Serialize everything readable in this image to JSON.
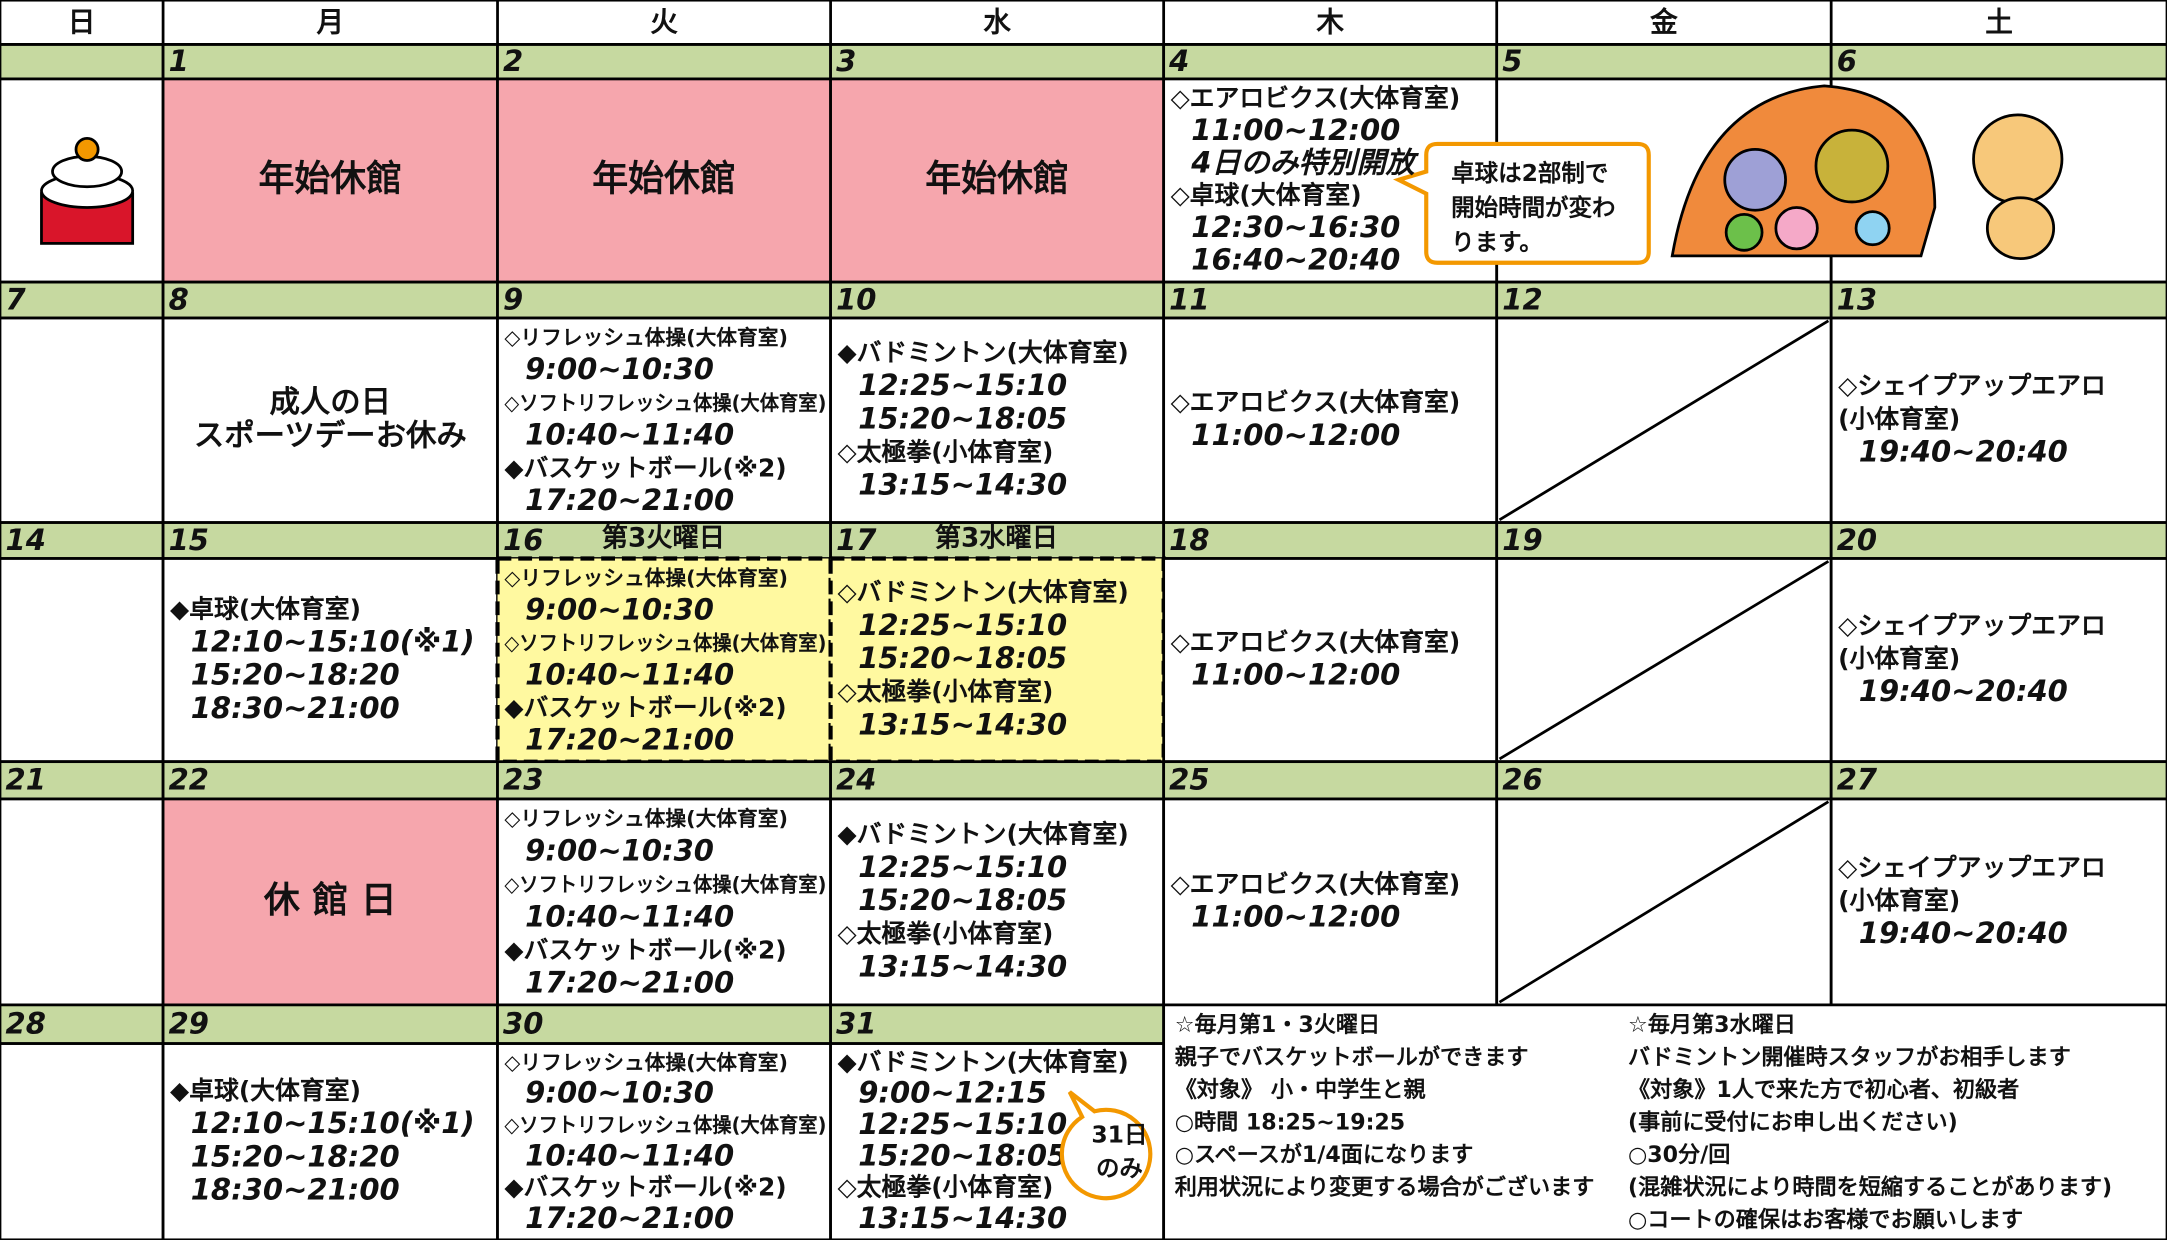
{
  "calendar": {
    "days": [
      "日",
      "月",
      "火",
      "水",
      "木",
      "金",
      "土"
    ],
    "weeks": [
      {
        "dates": [
          null,
          "1",
          "2",
          "3",
          "4",
          "5",
          "6"
        ],
        "cells": [
          {
            "style": "icon"
          },
          {
            "style": "closed",
            "label": "年始休館"
          },
          {
            "style": "closed",
            "label": "年始休館"
          },
          {
            "style": "closed",
            "label": "年始休館"
          },
          {
            "lines": [
              "◇エアロビクス(大体育室)",
              "11:00~12:00",
              {
                "text": "4日のみ特別開放",
                "color": "#e60012"
              },
              "◇卓球(大体育室)",
              "12:30~16:30",
              "16:40~20:40"
            ]
          },
          {
            "style": "picture"
          },
          {
            "style": "picture"
          }
        ]
      },
      {
        "dates": [
          "7",
          "8",
          "9",
          "10",
          "11",
          "12",
          "13"
        ],
        "cells": [
          {},
          {
            "lines": [
              "成人の日",
              "スポーツデーお休み"
            ],
            "style": "center"
          },
          {
            "lines": [
              "◇リフレッシュ体操(大体育室)",
              "9:00~10:30",
              "◇ソフトリフレッシュ体操(大体育室)",
              "10:40~11:40",
              "◆バスケットボール(※2)",
              "17:20~21:00"
            ]
          },
          {
            "lines": [
              "◆バドミントン(大体育室)",
              "12:25~15:10",
              "15:20~18:05",
              "◇太極拳(小体育室)",
              "13:15~14:30"
            ]
          },
          {
            "lines": [
              "◇エアロビクス(大体育室)",
              "11:00~12:00"
            ]
          },
          {
            "style": "slash"
          },
          {
            "lines": [
              "◇シェイプアップエアロ",
              "(小体育室)",
              "19:40~20:40"
            ]
          }
        ]
      },
      {
        "dates": [
          "14",
          "15",
          "16",
          "17",
          "18",
          "19",
          "20"
        ],
        "date_notes": [
          null,
          null,
          "第3火曜日",
          "第3水曜日",
          null,
          null,
          null
        ],
        "cells": [
          {},
          {
            "lines": [
              "◆卓球(大体育室)",
              "12:10~15:10(※1)",
              "15:20~18:20",
              "18:30~21:00"
            ]
          },
          {
            "style": "highlight",
            "lines": [
              "◇リフレッシュ体操(大体育室)",
              "9:00~10:30",
              "◇ソフトリフレッシュ体操(大体育室)",
              "10:40~11:40",
              "◆バスケットボール(※2)",
              "17:20~21:00"
            ]
          },
          {
            "style": "highlight",
            "lines": [
              "◇バドミントン(大体育室)",
              "12:25~15:10",
              "15:20~18:05",
              "◇太極拳(小体育室)",
              "13:15~14:30"
            ]
          },
          {
            "lines": [
              "◇エアロビクス(大体育室)",
              "11:00~12:00"
            ]
          },
          {
            "style": "slash"
          },
          {
            "lines": [
              "◇シェイプアップエアロ",
              "(小体育室)",
              "19:40~20:40"
            ]
          }
        ]
      },
      {
        "dates": [
          "21",
          "22",
          "23",
          "24",
          "25",
          "26",
          "27"
        ],
        "cells": [
          {},
          {
            "style": "closed",
            "label": "休 館 日"
          },
          {
            "lines": [
              "◇リフレッシュ体操(大体育室)",
              "9:00~10:30",
              "◇ソフトリフレッシュ体操(大体育室)",
              "10:40~11:40",
              "◆バスケットボール(※2)",
              "17:20~21:00"
            ]
          },
          {
            "lines": [
              "◆バドミントン(大体育室)",
              "12:25~15:10",
              "15:20~18:05",
              "◇太極拳(小体育室)",
              "13:15~14:30"
            ]
          },
          {
            "lines": [
              "◇エアロビクス(大体育室)",
              "11:00~12:00"
            ]
          },
          {
            "style": "slash"
          },
          {
            "lines": [
              "◇シェイプアップエアロ",
              "(小体育室)",
              "19:40~20:40"
            ]
          }
        ]
      },
      {
        "dates": [
          "28",
          "29",
          "30",
          "31",
          null,
          null,
          null
        ],
        "cells": [
          {},
          {
            "lines": [
              "◆卓球(大体育室)",
              "12:10~15:10(※1)",
              "15:20~18:20",
              "18:30~21:00"
            ]
          },
          {
            "lines": [
              "◇リフレッシュ体操(大体育室)",
              "9:00~10:30",
              "◇ソフトリフレッシュ体操(大体育室)",
              "10:40~11:40",
              "◆バスケットボール(※2)",
              "17:20~21:00"
            ]
          },
          {
            "lines": [
              "◆バドミントン(大体育室)",
              "9:00~12:15",
              "12:25~15:10",
              "15:20~18:05",
              "◇太極拳(小体育室)",
              "13:15~14:30"
            ]
          },
          null,
          null,
          null
        ]
      }
    ],
    "notes_left": [
      "☆毎月第1・3火曜日",
      "親子でバスケットボールができます",
      "《対象》 小・中学生と親",
      "○時間 18:25~19:25",
      "○スペースが1/4面になります",
      "利用状況により変更する場合がございます"
    ],
    "notes_right": [
      "☆毎月第3水曜日",
      "バドミントン開催時スタッフがお相手します",
      "《対象》1人で来た方で初心者、初級者",
      "(事前に受付にお申し出ください)",
      "○30分/回",
      "(混雑状況により時間を短縮することがあります)",
      "○コートの確保はお客様でお願いします"
    ],
    "callout_table_tennis": [
      "卓球は2部制で",
      "開始時間が変わ",
      "ります。"
    ],
    "callout_31": [
      "31日",
      "のみ"
    ]
  }
}
